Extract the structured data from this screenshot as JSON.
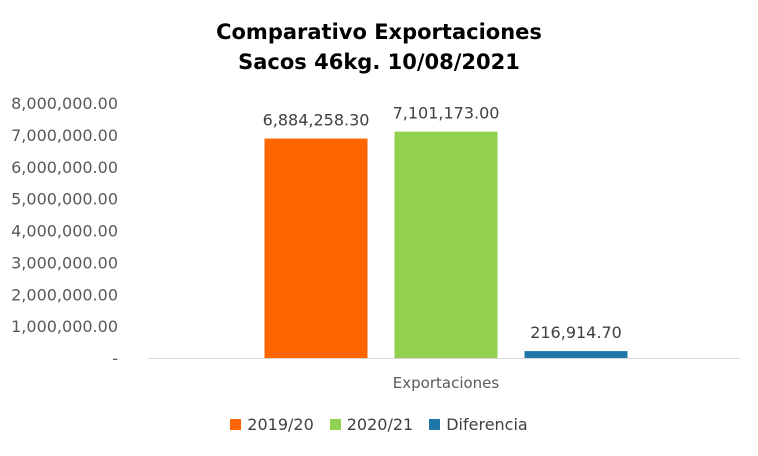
{
  "chart_data": {
    "type": "bar",
    "title": "Comparativo  Exportaciones",
    "subtitle": "Sacos 46kg. 10/08/2021",
    "categories": [
      "Exportaciones"
    ],
    "series": [
      {
        "name": "2019/20",
        "values": [
          6884258.3
        ],
        "label": "6,884,258.30",
        "color": "#ff6600"
      },
      {
        "name": "2020/21",
        "values": [
          7101173.0
        ],
        "label": "7,101,173.00",
        "color": "#92d050"
      },
      {
        "name": "Diferencia",
        "values": [
          216914.7
        ],
        "label": "216,914.70",
        "color": "#1f77a8"
      }
    ],
    "ylim": [
      0,
      8000000
    ],
    "yticks": [
      {
        "value": 8000000,
        "label": "8,000,000.00"
      },
      {
        "value": 7000000,
        "label": "7,000,000.00"
      },
      {
        "value": 6000000,
        "label": "6,000,000.00"
      },
      {
        "value": 5000000,
        "label": "5,000,000.00"
      },
      {
        "value": 4000000,
        "label": "4,000,000.00"
      },
      {
        "value": 3000000,
        "label": "3,000,000.00"
      },
      {
        "value": 2000000,
        "label": "2,000,000.00"
      },
      {
        "value": 1000000,
        "label": "1,000,000.00"
      },
      {
        "value": 0,
        "label": "-"
      }
    ],
    "grid": false,
    "legend_position": "bottom"
  }
}
